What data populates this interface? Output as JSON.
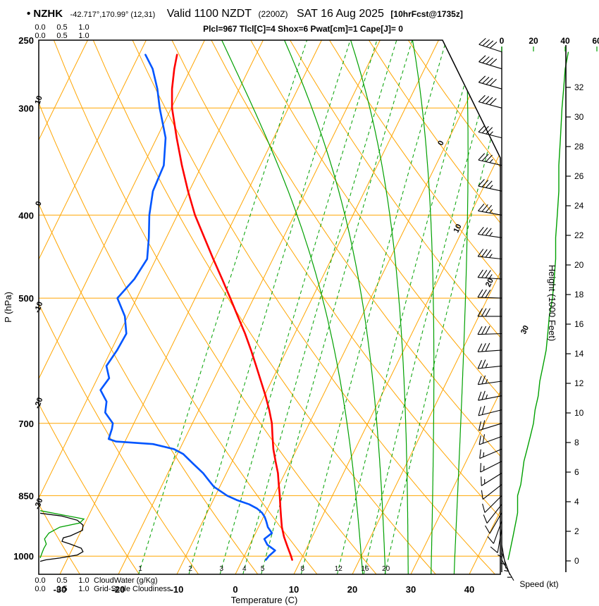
{
  "header": {
    "bullet_station": "• NZHK",
    "coords": "-42.717°,170.99° (12,31)",
    "valid": "Valid 1100 NZDT",
    "zulu": "(2200Z)",
    "date": "SAT 16 Aug 2025",
    "fcst": "[10hrFcst@1735z]",
    "params": "Plcl=967 Tlcl[C]=4 Shox=6 Pwat[cm]=1 Cape[J]= 0"
  },
  "axes": {
    "pressure_label": "P (hPa)",
    "pressure_ticks": [
      250,
      300,
      400,
      500,
      700,
      850,
      1000
    ],
    "temp_label": "Temperature (C)",
    "temp_ticks": [
      -30,
      -20,
      -10,
      0,
      10,
      20,
      30,
      40
    ],
    "height_label": "Height (1000 Feet)",
    "height_ticks": [
      0,
      2,
      4,
      6,
      8,
      10,
      12,
      14,
      16,
      18,
      20,
      22,
      24,
      26,
      28,
      30,
      32
    ],
    "speed_label": "Speed (kt)",
    "speed_ticks": [
      0,
      20,
      40,
      60
    ],
    "cloudwater_label": "CloudWater (g/Kg)",
    "cloudiness_label": "Grid-Scale Cloudiness",
    "cloud_scale": [
      "0.0",
      "0.5",
      "1.0"
    ]
  },
  "colors": {
    "orange": "#FFA500",
    "green": "#00A000",
    "red": "#FF0000",
    "blue": "#0055FF",
    "magenta": "#C0006C",
    "black": "#000000"
  },
  "chart_data": {
    "type": "skewt-log-p-sounding",
    "pressure_range": [
      250,
      1050
    ],
    "temp_axis_range": [
      -35,
      45
    ],
    "isotherm_step": 10,
    "dry_adiabat_step": 10,
    "isotherm_labels": [
      0,
      10,
      20,
      30
    ],
    "dry_adiabat_labels": [
      10,
      0,
      -10,
      -20,
      -30
    ],
    "mixing_ratio_lines": [
      1,
      2,
      3,
      4,
      5,
      8,
      12,
      16,
      20
    ],
    "moist_adiabat_starts": [
      20,
      24,
      28,
      32,
      36
    ],
    "temperature_profile": [
      [
        1010,
        8.5
      ],
      [
        1000,
        8.0
      ],
      [
        975,
        6.6
      ],
      [
        950,
        5.2
      ],
      [
        925,
        4.0
      ],
      [
        900,
        3.0
      ],
      [
        875,
        2.0
      ],
      [
        850,
        1.0
      ],
      [
        825,
        -0.1
      ],
      [
        800,
        -1.2
      ],
      [
        775,
        -2.6
      ],
      [
        750,
        -4.0
      ],
      [
        725,
        -5.2
      ],
      [
        700,
        -6.4
      ],
      [
        675,
        -8.0
      ],
      [
        650,
        -9.8
      ],
      [
        625,
        -11.8
      ],
      [
        600,
        -13.9
      ],
      [
        575,
        -16.1
      ],
      [
        550,
        -18.5
      ],
      [
        525,
        -21.2
      ],
      [
        500,
        -24.0
      ],
      [
        475,
        -27.0
      ],
      [
        450,
        -30.2
      ],
      [
        425,
        -33.5
      ],
      [
        400,
        -37.0
      ],
      [
        375,
        -40.2
      ],
      [
        350,
        -43.4
      ],
      [
        325,
        -46.6
      ],
      [
        300,
        -49.9
      ],
      [
        285,
        -51.5
      ],
      [
        270,
        -52.8
      ],
      [
        260,
        -53.5
      ]
    ],
    "dewpoint_profile": [
      [
        1010,
        4.0
      ],
      [
        1000,
        4.2
      ],
      [
        985,
        4.8
      ],
      [
        970,
        3.0
      ],
      [
        955,
        2.0
      ],
      [
        940,
        2.8
      ],
      [
        925,
        1.6
      ],
      [
        910,
        0.8
      ],
      [
        900,
        0.2
      ],
      [
        890,
        -0.6
      ],
      [
        880,
        -1.8
      ],
      [
        870,
        -3.5
      ],
      [
        860,
        -6.0
      ],
      [
        850,
        -8.0
      ],
      [
        840,
        -9.5
      ],
      [
        830,
        -11.0
      ],
      [
        820,
        -12.0
      ],
      [
        810,
        -13.0
      ],
      [
        800,
        -14.0
      ],
      [
        780,
        -16.5
      ],
      [
        760,
        -19.0
      ],
      [
        750,
        -21.0
      ],
      [
        740,
        -25.0
      ],
      [
        735,
        -31.5
      ],
      [
        730,
        -33.0
      ],
      [
        710,
        -33.3
      ],
      [
        700,
        -33.6
      ],
      [
        680,
        -35.8
      ],
      [
        660,
        -36.5
      ],
      [
        640,
        -38.5
      ],
      [
        620,
        -38.0
      ],
      [
        600,
        -39.5
      ],
      [
        575,
        -39.0
      ],
      [
        550,
        -38.8
      ],
      [
        525,
        -40.5
      ],
      [
        500,
        -43.3
      ],
      [
        475,
        -42.0
      ],
      [
        450,
        -41.5
      ],
      [
        425,
        -43.0
      ],
      [
        400,
        -44.8
      ],
      [
        375,
        -46.2
      ],
      [
        350,
        -46.5
      ],
      [
        325,
        -48.5
      ],
      [
        300,
        -52.0
      ],
      [
        285,
        -54.0
      ],
      [
        270,
        -56.5
      ],
      [
        260,
        -58.9
      ]
    ],
    "winds": [
      [
        1010,
        4,
        150
      ],
      [
        990,
        5,
        160
      ],
      [
        970,
        6,
        170
      ],
      [
        950,
        7,
        180
      ],
      [
        930,
        8,
        190
      ],
      [
        910,
        9,
        200
      ],
      [
        890,
        10,
        210
      ],
      [
        870,
        10,
        218
      ],
      [
        850,
        10,
        225
      ],
      [
        825,
        12,
        232
      ],
      [
        800,
        13,
        238
      ],
      [
        775,
        14,
        243
      ],
      [
        750,
        16,
        247
      ],
      [
        725,
        18,
        250
      ],
      [
        700,
        20,
        253
      ],
      [
        675,
        21,
        256
      ],
      [
        650,
        23,
        259
      ],
      [
        625,
        24,
        262
      ],
      [
        600,
        26,
        264
      ],
      [
        575,
        28,
        266
      ],
      [
        550,
        29,
        268
      ],
      [
        525,
        30,
        270
      ],
      [
        500,
        32,
        272
      ],
      [
        475,
        33,
        274
      ],
      [
        450,
        34,
        276
      ],
      [
        425,
        34,
        278
      ],
      [
        400,
        35,
        280
      ],
      [
        375,
        36,
        282
      ],
      [
        350,
        36,
        283
      ],
      [
        325,
        37,
        284
      ],
      [
        300,
        38,
        285
      ],
      [
        285,
        39,
        286
      ],
      [
        270,
        40,
        287
      ],
      [
        258,
        42,
        288
      ]
    ],
    "cloudiness": [
      [
        891,
        0
      ],
      [
        898,
        0.5
      ],
      [
        908,
        0.85
      ],
      [
        920,
        0.98
      ],
      [
        933,
        0.97
      ],
      [
        947,
        0.69
      ],
      [
        952,
        0.53
      ],
      [
        961,
        0.5
      ],
      [
        968,
        0.69
      ],
      [
        979,
        0.94
      ],
      [
        988,
        0.98
      ],
      [
        997,
        0.85
      ],
      [
        1005,
        0.45
      ],
      [
        1010,
        0.13
      ],
      [
        1014,
        0
      ]
    ],
    "cloud_water": [
      [
        885,
        0
      ],
      [
        895,
        0.5
      ],
      [
        905,
        1.0
      ],
      [
        915,
        0.9
      ],
      [
        925,
        0.45
      ],
      [
        940,
        0.2
      ],
      [
        955,
        0.1
      ],
      [
        968,
        0.14
      ],
      [
        980,
        0.08
      ],
      [
        995,
        0.03
      ],
      [
        1005,
        0
      ]
    ]
  }
}
